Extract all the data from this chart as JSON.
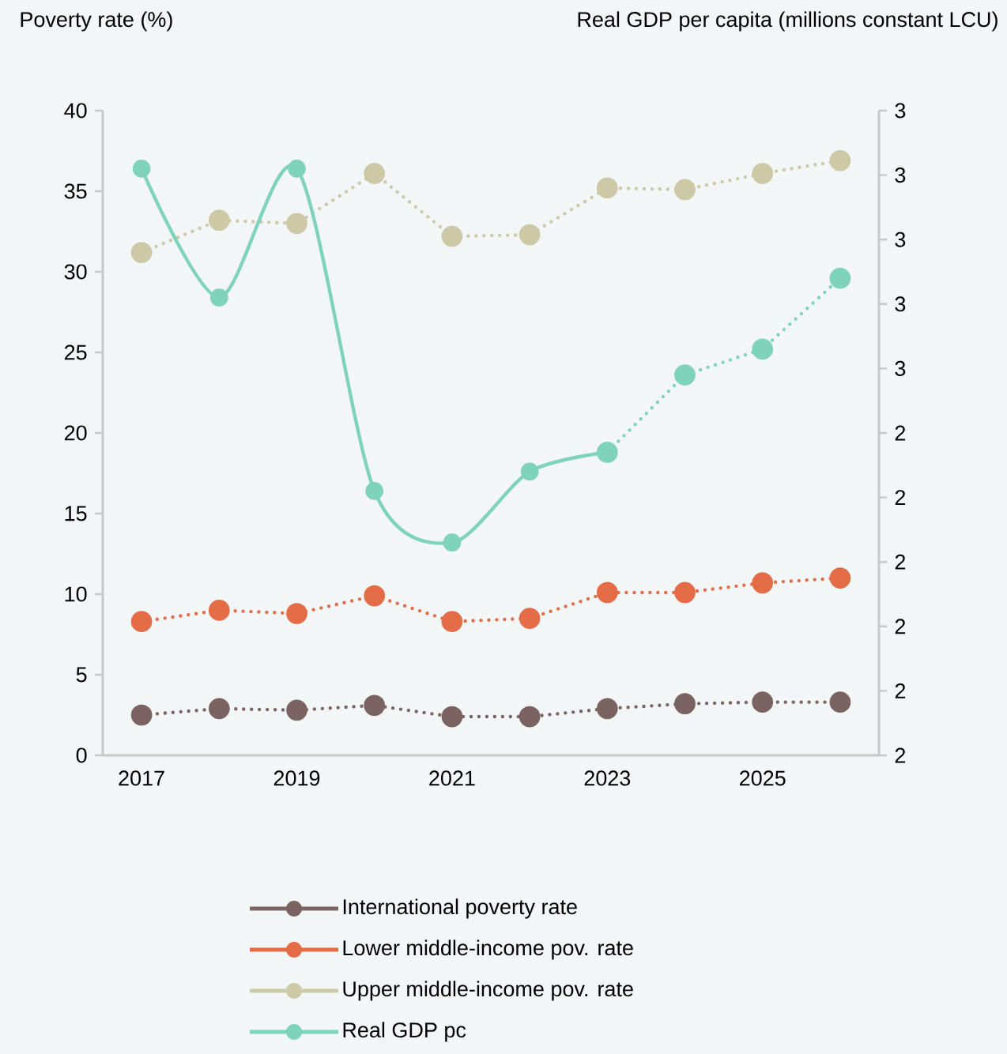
{
  "chart_data": {
    "type": "line",
    "ylabel": "Poverty rate (%)",
    "y2label": "Real GDP per capita (millions constant LCU)",
    "categories": [
      "2017",
      null,
      "2019",
      null,
      "2021",
      null,
      "2023",
      null,
      "2025",
      null
    ],
    "series": [
      {
        "name": "International poverty rate",
        "color": "#7a6360",
        "line_style": "dotted",
        "values": [
          2.5,
          2.9,
          2.8,
          3.1,
          2.4,
          2.4,
          2.9,
          3.2,
          3.3,
          3.3
        ]
      },
      {
        "name": "Lower middle-income pov. rate",
        "color": "#e46c47",
        "line_style": "dotted",
        "values": [
          8.3,
          9.0,
          8.8,
          9.9,
          8.3,
          8.5,
          10.1,
          10.1,
          10.7,
          11.0
        ]
      },
      {
        "name": "Upper middle-income pov. rate",
        "color": "#cdc9a6",
        "line_style": "dotted",
        "values": [
          31.2,
          33.2,
          33.0,
          36.1,
          32.2,
          32.3,
          35.2,
          35.1,
          36.1,
          36.9
        ]
      },
      {
        "name": "Real GDP pc",
        "color": "#7fd3bb",
        "line_style": "solid",
        "axis": "y2",
        "values": [
          2.91,
          2.71,
          2.91,
          2.41,
          2.33,
          2.44,
          2.47,
          null,
          null,
          null
        ]
      },
      {
        "color": "#7fd3bb",
        "line_style": "dotted",
        "axis": "y2",
        "values": [
          null,
          null,
          null,
          null,
          null,
          null,
          2.47,
          2.59,
          2.63,
          2.74
        ]
      }
    ],
    "ylim": [
      0,
      40
    ],
    "yticks": [
      0,
      5,
      10,
      15,
      20,
      25,
      30,
      35,
      40
    ],
    "y2lim": [
      2.0,
      3.0
    ],
    "y2ticks": [
      {
        "value": 2.0,
        "label": "2"
      },
      {
        "value": 2.1,
        "label": "2"
      },
      {
        "value": 2.2,
        "label": "2"
      },
      {
        "value": 2.3,
        "label": "2"
      },
      {
        "value": 2.4,
        "label": "2"
      },
      {
        "value": 2.5,
        "label": "2"
      },
      {
        "value": 2.6,
        "label": "3"
      },
      {
        "value": 2.7,
        "label": "3"
      },
      {
        "value": 2.8,
        "label": "3"
      },
      {
        "value": 2.9,
        "label": "3"
      },
      {
        "value": 3.0,
        "label": "3"
      }
    ],
    "marker": "circle",
    "grid": false,
    "legend": "bottom"
  }
}
